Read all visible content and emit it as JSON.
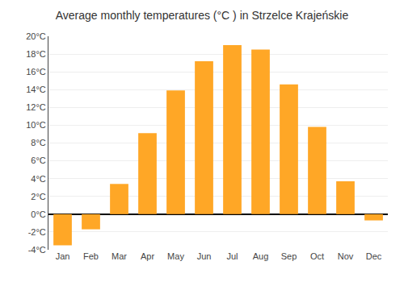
{
  "chart_data": {
    "type": "bar",
    "title": "Average monthly temperatures (°C ) in Strzelce Krajeńskie",
    "categories": [
      "Jan",
      "Feb",
      "Mar",
      "Apr",
      "May",
      "Jun",
      "Jul",
      "Aug",
      "Sep",
      "Oct",
      "Nov",
      "Dec"
    ],
    "values": [
      -3.5,
      -1.7,
      3.4,
      9.1,
      13.9,
      17.2,
      19.0,
      18.5,
      14.6,
      9.8,
      3.7,
      -0.7
    ],
    "color": "#FFA726",
    "ylim": [
      -4,
      20
    ],
    "yticks": [
      {
        "value": -4,
        "label": "-4°C"
      },
      {
        "value": -2,
        "label": "-2°C"
      },
      {
        "value": 0,
        "label": "0°C"
      },
      {
        "value": 2,
        "label": "2°C"
      },
      {
        "value": 4,
        "label": "4°C"
      },
      {
        "value": 6,
        "label": "6°C"
      },
      {
        "value": 8,
        "label": "8°C"
      },
      {
        "value": 10,
        "label": "10°C"
      },
      {
        "value": 12,
        "label": "12°C"
      },
      {
        "value": 14,
        "label": "14°C"
      },
      {
        "value": 16,
        "label": "16°C"
      },
      {
        "value": 18,
        "label": "18°C"
      },
      {
        "value": 20,
        "label": "20°C"
      }
    ],
    "grid": true
  }
}
